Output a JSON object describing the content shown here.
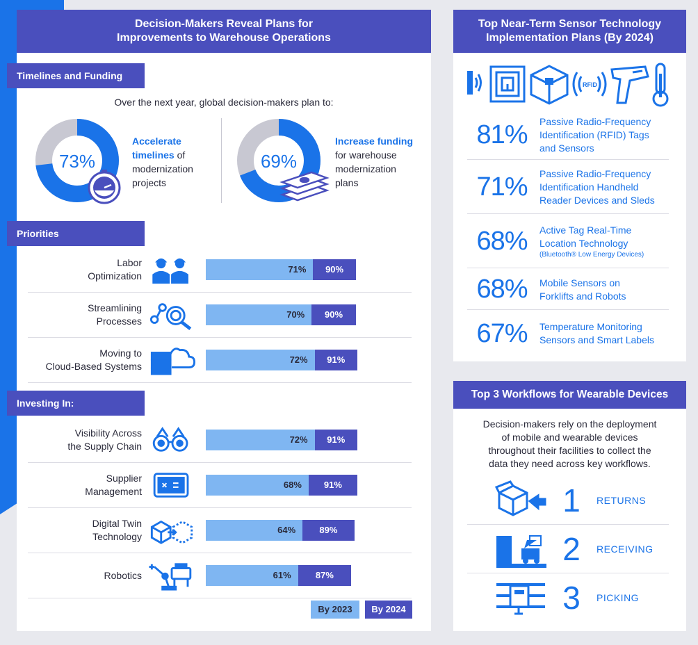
{
  "left_panel": {
    "title_line1": "Decision-Makers Reveal Plans for",
    "title_line2": "Improvements to Warehouse Operations",
    "timelines": {
      "tag": "Timelines and Funding",
      "intro": "Over the next year, global decision-makers plan to:",
      "left": {
        "value": 73,
        "value_label": "73%",
        "bold1": "Accelerate",
        "bold2": "timelines",
        "rest2": " of",
        "rest3": "modernization",
        "rest4": "projects"
      },
      "right": {
        "value": 69,
        "value_label": "69%",
        "bold1": "Increase funding",
        "rest2": "for warehouse",
        "rest3": "modernization",
        "rest4": "plans"
      }
    },
    "priorities_tag": "Priorities",
    "investing_tag": "Investing In:",
    "legend": {
      "y2023": "By 2023",
      "y2024": "By 2024"
    }
  },
  "chart_data": {
    "type": "bar",
    "series": [
      {
        "name": "By 2023",
        "color": "#7fb6f2"
      },
      {
        "name": "By 2024",
        "color": "#4a4fbd"
      }
    ],
    "priorities": [
      {
        "label1": "Labor",
        "label2": "Optimization",
        "icon": "workers-icon",
        "v2023": 71,
        "v2024": 90,
        "l2023": "71%",
        "l2024": "90%"
      },
      {
        "label1": "Streamlining",
        "label2": "Processes",
        "icon": "process-magnifier-icon",
        "v2023": 70,
        "v2024": 90,
        "l2023": "70%",
        "l2024": "90%"
      },
      {
        "label1": "Moving to",
        "label2": "Cloud-Based Systems",
        "icon": "server-cloud-icon",
        "v2023": 72,
        "v2024": 91,
        "l2023": "72%",
        "l2024": "91%"
      }
    ],
    "investing": [
      {
        "label1": "Visibility Across",
        "label2": "the Supply Chain",
        "icon": "binoculars-icon",
        "v2023": 72,
        "v2024": 91,
        "l2023": "72%",
        "l2024": "91%"
      },
      {
        "label1": "Supplier",
        "label2": "Management",
        "icon": "supplier-screen-icon",
        "v2023": 68,
        "v2024": 91,
        "l2023": "68%",
        "l2024": "91%"
      },
      {
        "label1": "Digital Twin",
        "label2": "Technology",
        "icon": "digital-twin-cube-icon",
        "v2023": 64,
        "v2024": 89,
        "l2023": "64%",
        "l2024": "89%"
      },
      {
        "label1": "Robotics",
        "label2": "",
        "icon": "robot-arm-icon",
        "v2023": 61,
        "v2024": 87,
        "l2023": "61%",
        "l2024": "87%"
      }
    ]
  },
  "sensors": {
    "title_line1": "Top Near-Term Sensor Technology",
    "title_line2": "Implementation Plans (By 2024)",
    "icons": [
      "nfc-icon",
      "rfid-tag-icon",
      "package-icon",
      "rfid-signal-icon",
      "handheld-scanner-icon",
      "thermometer-icon"
    ],
    "rfid_text": "RFID",
    "items": [
      {
        "pct": "81%",
        "l1": "Passive Radio-Frequency",
        "l2": "Identification (RFID) Tags",
        "l3": "and Sensors",
        "small": ""
      },
      {
        "pct": "71%",
        "l1": "Passive Radio-Frequency",
        "l2": "Identification Handheld",
        "l3": "Reader Devices and Sleds",
        "small": ""
      },
      {
        "pct": "68%",
        "l1": "Active Tag Real-Time",
        "l2": "Location Technology",
        "l3": "",
        "small": "(Bluetooth® Low Energy Devices)"
      },
      {
        "pct": "68%",
        "l1": "Mobile Sensors on",
        "l2": "Forklifts and Robots",
        "l3": "",
        "small": ""
      },
      {
        "pct": "67%",
        "l1": "Temperature Monitoring",
        "l2": "Sensors and Smart Labels",
        "l3": "",
        "small": ""
      }
    ]
  },
  "workflows": {
    "title": "Top 3 Workflows for Wearable Devices",
    "intro_l1": "Decision-makers rely on the deployment",
    "intro_l2": "of mobile and wearable devices",
    "intro_l3": "throughout their facilities to collect the",
    "intro_l4": "data they need across key workflows.",
    "items": [
      {
        "num": "1",
        "label": "RETURNS",
        "icon": "returns-box-icon"
      },
      {
        "num": "2",
        "label": "RECEIVING",
        "icon": "receiving-truck-icon"
      },
      {
        "num": "3",
        "label": "PICKING",
        "icon": "picking-shelf-icon"
      }
    ]
  }
}
